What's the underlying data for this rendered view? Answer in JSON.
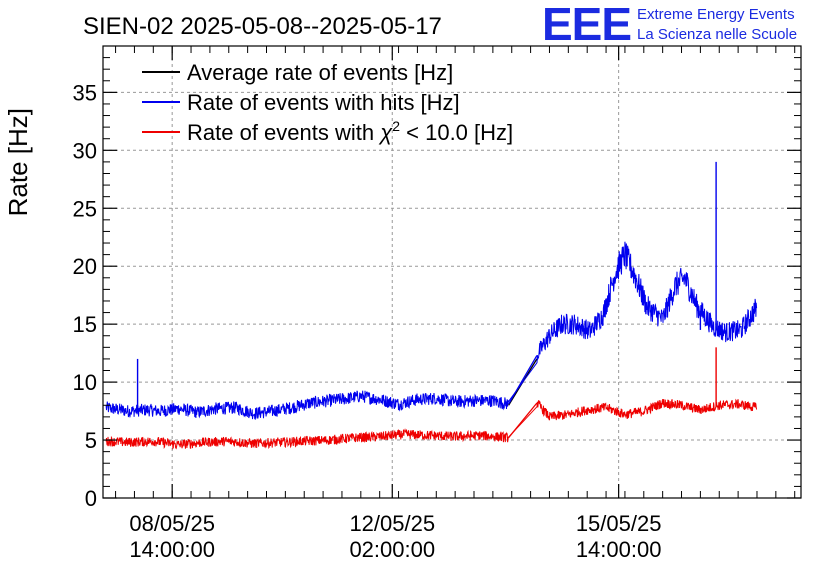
{
  "chart_data": {
    "type": "line",
    "title": "SIEN-02 2025-05-08--2025-05-17",
    "ylabel": "Rate [Hz]",
    "xlabel": "",
    "ylim": [
      0,
      39
    ],
    "yticks": [
      0,
      5,
      10,
      15,
      20,
      25,
      30,
      35
    ],
    "xlim_hours": [
      -8,
      214
    ],
    "xticks": [
      {
        "hours": 14,
        "date": "08/05/25",
        "time": "14:00:00"
      },
      {
        "hours": 84,
        "date": "12/05/25",
        "time": "02:00:00"
      },
      {
        "hours": 156,
        "date": "15/05/25",
        "time": "14:00:00"
      }
    ],
    "grid": true,
    "legend_position": "top-left",
    "series": [
      {
        "name": "Average rate of events [Hz]",
        "color": "#000000",
        "points": [
          [
            121,
            8.0
          ],
          [
            130,
            12.0
          ]
        ]
      },
      {
        "name": "Rate of events with hits [Hz]",
        "color": "#0000ee",
        "points": [
          [
            -7,
            7.8
          ],
          [
            0,
            7.5
          ],
          [
            6,
            7.6
          ],
          [
            10,
            7.5
          ],
          [
            16,
            7.7
          ],
          [
            22,
            7.4
          ],
          [
            28,
            7.7
          ],
          [
            34,
            7.8
          ],
          [
            40,
            7.3
          ],
          [
            46,
            7.5
          ],
          [
            52,
            7.8
          ],
          [
            58,
            8.2
          ],
          [
            64,
            8.4
          ],
          [
            70,
            8.6
          ],
          [
            74,
            8.8
          ],
          [
            80,
            8.5
          ],
          [
            86,
            8.1
          ],
          [
            92,
            8.5
          ],
          [
            98,
            8.6
          ],
          [
            104,
            8.3
          ],
          [
            110,
            8.4
          ],
          [
            116,
            8.4
          ],
          [
            121,
            8.1
          ],
          [
            130,
            12.3
          ],
          [
            134,
            14.0
          ],
          [
            138,
            15.0
          ],
          [
            142,
            15.0
          ],
          [
            147,
            14.4
          ],
          [
            151,
            15.8
          ],
          [
            155,
            19.5
          ],
          [
            158,
            21.0
          ],
          [
            161,
            19.3
          ],
          [
            165,
            16.5
          ],
          [
            170,
            15.4
          ],
          [
            174,
            18.3
          ],
          [
            177,
            19.0
          ],
          [
            181,
            16.5
          ],
          [
            186,
            14.8
          ],
          [
            190,
            14.3
          ],
          [
            195,
            14.5
          ],
          [
            200,
            16.5
          ]
        ],
        "spikes": [
          [
            3,
            12.0
          ],
          [
            187,
            29.0
          ],
          [
            182,
            14.5
          ]
        ]
      },
      {
        "name": "Rate of events with χ² < 10.0 [Hz]",
        "color": "#ee0000",
        "points": [
          [
            -7,
            4.9
          ],
          [
            0,
            4.8
          ],
          [
            8,
            4.9
          ],
          [
            16,
            4.6
          ],
          [
            24,
            4.8
          ],
          [
            32,
            4.9
          ],
          [
            40,
            4.7
          ],
          [
            48,
            4.8
          ],
          [
            56,
            4.9
          ],
          [
            64,
            5.0
          ],
          [
            72,
            5.2
          ],
          [
            80,
            5.3
          ],
          [
            88,
            5.5
          ],
          [
            96,
            5.4
          ],
          [
            104,
            5.3
          ],
          [
            112,
            5.4
          ],
          [
            121,
            5.2
          ],
          [
            130,
            8.2
          ],
          [
            134,
            7.0
          ],
          [
            140,
            7.2
          ],
          [
            146,
            7.6
          ],
          [
            152,
            7.8
          ],
          [
            158,
            7.2
          ],
          [
            164,
            7.5
          ],
          [
            170,
            8.2
          ],
          [
            176,
            8.0
          ],
          [
            182,
            7.6
          ],
          [
            188,
            8.0
          ],
          [
            194,
            8.1
          ],
          [
            200,
            7.8
          ]
        ],
        "spikes": [
          [
            187,
            13.0
          ]
        ]
      }
    ],
    "legend": [
      {
        "label": "Average rate of events [Hz]",
        "color": "#000000"
      },
      {
        "label": "Rate of events with hits [Hz]",
        "color": "#0000ee"
      },
      {
        "label_prefix": "Rate of events with ",
        "label_chi": "χ",
        "label_sup": "2",
        "label_suffix": " < 10.0 [Hz]",
        "color": "#ee0000"
      }
    ]
  },
  "logo": {
    "mark": "EEE",
    "line1": "Extreme Energy Events",
    "line2": "La Scienza nelle Scuole"
  }
}
